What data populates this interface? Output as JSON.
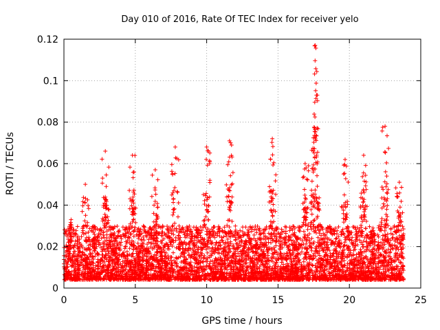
{
  "chart_data": {
    "type": "scatter",
    "title": "Day 010 of 2016, Rate Of TEC Index for receiver yelo",
    "xlabel": "GPS time / hours",
    "ylabel": "ROTI / TECUs",
    "xlim": [
      0,
      25
    ],
    "ylim": [
      0,
      0.12
    ],
    "xticks": [
      0,
      5,
      10,
      15,
      20,
      25
    ],
    "yticks": [
      0,
      0.02,
      0.04,
      0.06,
      0.08,
      0.1,
      0.12
    ],
    "xtick_labels": [
      "0",
      "5",
      "10",
      "15",
      "20",
      "25"
    ],
    "ytick_labels": [
      "0",
      "0.02",
      "0.04",
      "0.06",
      "0.08",
      "0.1",
      "0.12"
    ],
    "grid": true,
    "marker": "+",
    "color": "#ff0000",
    "series": [
      {
        "name": "ROTI",
        "x_range": [
          0,
          23.8
        ],
        "typical_range": [
          0.004,
          0.03
        ],
        "peaks": [
          {
            "x": 0.5,
            "y": 0.033
          },
          {
            "x": 1.5,
            "y": 0.05
          },
          {
            "x": 2.9,
            "y": 0.066
          },
          {
            "x": 4.8,
            "y": 0.064
          },
          {
            "x": 6.4,
            "y": 0.057
          },
          {
            "x": 7.8,
            "y": 0.068
          },
          {
            "x": 10.0,
            "y": 0.068
          },
          {
            "x": 11.6,
            "y": 0.071
          },
          {
            "x": 14.6,
            "y": 0.072
          },
          {
            "x": 16.9,
            "y": 0.06
          },
          {
            "x": 17.6,
            "y": 0.117
          },
          {
            "x": 19.7,
            "y": 0.062
          },
          {
            "x": 21.0,
            "y": 0.064
          },
          {
            "x": 22.5,
            "y": 0.078
          },
          {
            "x": 23.5,
            "y": 0.051
          }
        ]
      }
    ]
  }
}
